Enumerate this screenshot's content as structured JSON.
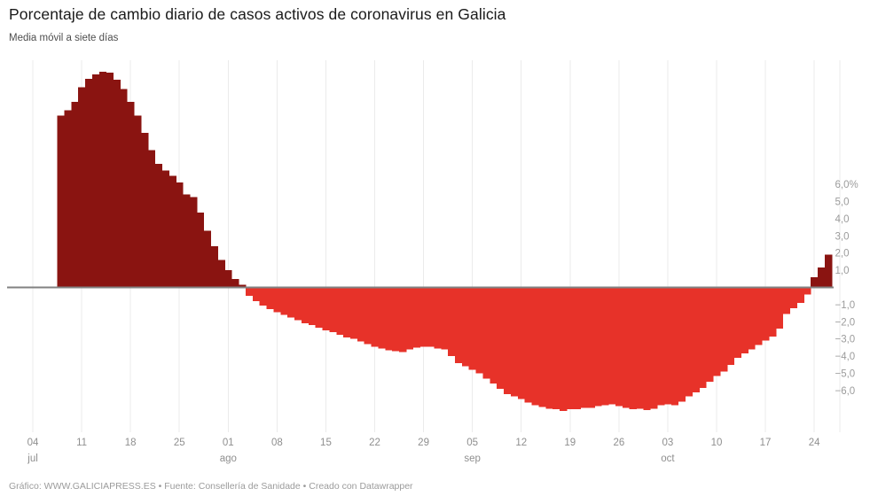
{
  "header": {
    "title": "Porcentaje de cambio diario de casos activos de coronavirus en Galicia",
    "subtitle": "Media móvil a siete días"
  },
  "footer": {
    "text": "Gráfico: WWW.GALICIAPRESS.ES • Fuente: Consellería de Sanidade • Creado con Datawrapper"
  },
  "chart_data": {
    "type": "bar",
    "title": "Porcentaje de cambio diario de casos activos de coronavirus en Galicia",
    "subtitle": "Media móvil a siete días",
    "unit": "%",
    "grid": "vertical-weekly-only",
    "legend": "none",
    "ylim": [
      -7.5,
      13
    ],
    "first_bar_date": "08 jul",
    "last_bar_date": "26 oct",
    "values": [
      10.0,
      10.3,
      10.8,
      11.65,
      12.15,
      12.4,
      12.55,
      12.5,
      12.1,
      11.55,
      10.8,
      10.0,
      9.0,
      8.0,
      7.2,
      6.8,
      6.5,
      6.1,
      5.4,
      5.25,
      4.35,
      3.3,
      2.4,
      1.6,
      1.0,
      0.5,
      0.15,
      -0.5,
      -0.8,
      -1.05,
      -1.25,
      -1.45,
      -1.6,
      -1.75,
      -1.9,
      -2.1,
      -2.2,
      -2.35,
      -2.5,
      -2.6,
      -2.75,
      -2.9,
      -3.0,
      -3.15,
      -3.3,
      -3.45,
      -3.55,
      -3.65,
      -3.7,
      -3.75,
      -3.6,
      -3.5,
      -3.45,
      -3.45,
      -3.55,
      -3.6,
      -4.0,
      -4.4,
      -4.6,
      -4.8,
      -5.0,
      -5.3,
      -5.6,
      -5.9,
      -6.2,
      -6.35,
      -6.5,
      -6.7,
      -6.85,
      -6.95,
      -7.05,
      -7.1,
      -7.2,
      -7.1,
      -7.1,
      -7.0,
      -7.0,
      -6.9,
      -6.85,
      -6.8,
      -6.9,
      -7.0,
      -7.1,
      -7.05,
      -7.15,
      -7.05,
      -6.85,
      -6.8,
      -6.85,
      -6.65,
      -6.35,
      -6.1,
      -5.85,
      -5.5,
      -5.15,
      -4.9,
      -4.5,
      -4.1,
      -3.85,
      -3.6,
      -3.35,
      -3.1,
      -2.85,
      -2.4,
      -1.55,
      -1.2,
      -0.9,
      -0.4,
      0.6,
      1.15,
      1.9
    ],
    "x_ticks": [
      {
        "day": "04",
        "month": "jul",
        "day_index": -4
      },
      {
        "day": "11",
        "month": "",
        "day_index": 3
      },
      {
        "day": "18",
        "month": "",
        "day_index": 10
      },
      {
        "day": "25",
        "month": "",
        "day_index": 17
      },
      {
        "day": "01",
        "month": "ago",
        "day_index": 24
      },
      {
        "day": "08",
        "month": "",
        "day_index": 31
      },
      {
        "day": "15",
        "month": "",
        "day_index": 38
      },
      {
        "day": "22",
        "month": "",
        "day_index": 45
      },
      {
        "day": "29",
        "month": "",
        "day_index": 52
      },
      {
        "day": "05",
        "month": "sep",
        "day_index": 59
      },
      {
        "day": "12",
        "month": "",
        "day_index": 66
      },
      {
        "day": "19",
        "month": "",
        "day_index": 73
      },
      {
        "day": "26",
        "month": "",
        "day_index": 80
      },
      {
        "day": "03",
        "month": "oct",
        "day_index": 87
      },
      {
        "day": "10",
        "month": "",
        "day_index": 94
      },
      {
        "day": "17",
        "month": "",
        "day_index": 101
      },
      {
        "day": "24",
        "month": "",
        "day_index": 108
      }
    ],
    "y_ticks": [
      {
        "v": 6,
        "label": "6,0%"
      },
      {
        "v": 5,
        "label": "5,0"
      },
      {
        "v": 4,
        "label": "4,0"
      },
      {
        "v": 3,
        "label": "3,0"
      },
      {
        "v": 2,
        "label": "2,0"
      },
      {
        "v": 1,
        "label": "1,0"
      },
      {
        "v": -1,
        "label": "−1,0"
      },
      {
        "v": -2,
        "label": "−2,0"
      },
      {
        "v": -3,
        "label": "−3,0"
      },
      {
        "v": -4,
        "label": "−4,0"
      },
      {
        "v": -5,
        "label": "−5,0"
      },
      {
        "v": -6,
        "label": "−6,0"
      }
    ],
    "colors": {
      "positive_bar": "#8a1411",
      "negative_bar": "#e73229",
      "zero_axis": "#828282",
      "gridline": "#ebebeb",
      "x_tick_text": "#8f8f8f",
      "y_tick_text": "#9c9c9c"
    }
  }
}
